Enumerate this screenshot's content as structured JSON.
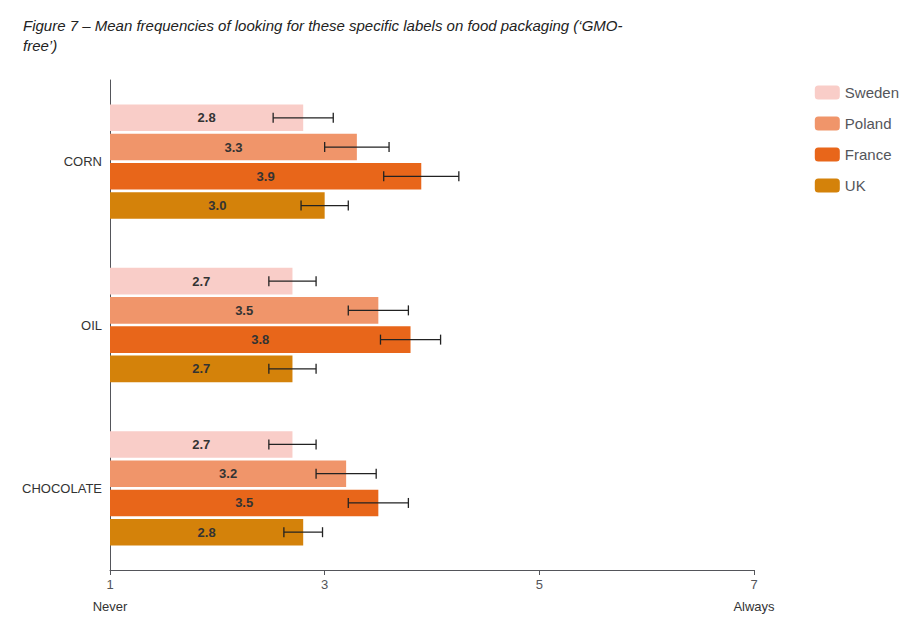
{
  "chart_data": {
    "type": "bar",
    "orientation": "horizontal",
    "title": "Figure 7 – Mean frequencies of looking for these specific labels on food packaging (‘GMO-\nfree’)",
    "categories": [
      "CORN",
      "OIL",
      "CHOCOLATE"
    ],
    "series": [
      {
        "name": "Sweden",
        "color": "#f9cdc8",
        "values": [
          2.8,
          2.7,
          2.7
        ],
        "errors": [
          0.28,
          0.22,
          0.22
        ]
      },
      {
        "name": "Poland",
        "color": "#f0956a",
        "values": [
          3.3,
          3.5,
          3.2
        ],
        "errors": [
          0.3,
          0.28,
          0.28
        ]
      },
      {
        "name": "France",
        "color": "#e8661a",
        "values": [
          3.9,
          3.8,
          3.5
        ],
        "errors": [
          0.35,
          0.28,
          0.28
        ]
      },
      {
        "name": "UK",
        "color": "#d4820a",
        "values": [
          3.0,
          2.7,
          2.8
        ],
        "value_labels": [
          "3.0",
          "2.7",
          "2.8"
        ],
        "errors": [
          0.22,
          0.22,
          0.18
        ]
      }
    ],
    "xlim": [
      1,
      7
    ],
    "xticks": [
      1,
      3,
      5,
      7
    ],
    "annotations": [
      {
        "text": "Never",
        "x": 1
      },
      {
        "text": "Always",
        "x": 7
      }
    ],
    "data_labels": true,
    "legend": "right",
    "grid": false
  }
}
